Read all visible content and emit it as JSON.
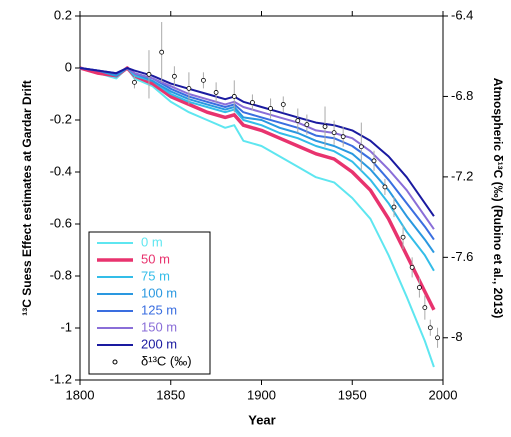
{
  "chart_data": {
    "type": "line",
    "xlabel": "Year",
    "ylabel": "¹³C Suess Effect estimates at Gardar Drift",
    "y2label": "Atmospheric δ¹³C (‰) (Rubino et al., 2013)",
    "xlim": [
      1800,
      2000
    ],
    "xticks": [
      1800,
      1850,
      1900,
      1950,
      2000
    ],
    "ylim": [
      -1.2,
      0.2
    ],
    "yticks": [
      0.2,
      0,
      -0.2,
      -0.4,
      -0.6,
      -0.8,
      -1,
      -1.2
    ],
    "y2lim": [
      -8.21,
      -6.4
    ],
    "y2ticks": [
      -6.4,
      -6.8,
      -7.2,
      -7.6,
      -8
    ],
    "legend": "lower left",
    "x": [
      1800,
      1810,
      1820,
      1826,
      1830,
      1840,
      1850,
      1860,
      1870,
      1880,
      1885,
      1890,
      1900,
      1910,
      1920,
      1930,
      1940,
      1950,
      1960,
      1970,
      1980,
      1990,
      1995
    ],
    "series": [
      {
        "name": "0 m",
        "color": "#5ee6f0",
        "linewidth": 2,
        "values": [
          0,
          -0.02,
          -0.04,
          0,
          -0.04,
          -0.07,
          -0.13,
          -0.17,
          -0.2,
          -0.23,
          -0.22,
          -0.28,
          -0.3,
          -0.34,
          -0.38,
          -0.42,
          -0.44,
          -0.5,
          -0.58,
          -0.72,
          -0.88,
          -1.05,
          -1.15
        ]
      },
      {
        "name": "50 m",
        "color": "#e8336e",
        "linewidth": 3.5,
        "values": [
          0,
          -0.02,
          -0.03,
          0,
          -0.03,
          -0.06,
          -0.11,
          -0.14,
          -0.17,
          -0.19,
          -0.18,
          -0.22,
          -0.24,
          -0.27,
          -0.3,
          -0.33,
          -0.35,
          -0.4,
          -0.47,
          -0.58,
          -0.72,
          -0.86,
          -0.93
        ]
      },
      {
        "name": "75 m",
        "color": "#33bde8",
        "linewidth": 2,
        "values": [
          0,
          -0.01,
          -0.03,
          0,
          -0.03,
          -0.05,
          -0.1,
          -0.13,
          -0.15,
          -0.17,
          -0.16,
          -0.2,
          -0.22,
          -0.25,
          -0.27,
          -0.3,
          -0.32,
          -0.36,
          -0.43,
          -0.52,
          -0.63,
          -0.72,
          -0.78
        ]
      },
      {
        "name": "100 m",
        "color": "#2a98e0",
        "linewidth": 2,
        "values": [
          0,
          -0.01,
          -0.03,
          0,
          -0.02,
          -0.05,
          -0.09,
          -0.12,
          -0.14,
          -0.16,
          -0.15,
          -0.19,
          -0.2,
          -0.23,
          -0.25,
          -0.28,
          -0.3,
          -0.33,
          -0.39,
          -0.47,
          -0.57,
          -0.66,
          -0.71
        ]
      },
      {
        "name": "125 m",
        "color": "#3a6ee0",
        "linewidth": 2,
        "values": [
          0,
          -0.01,
          -0.02,
          0,
          -0.02,
          -0.04,
          -0.08,
          -0.11,
          -0.13,
          -0.15,
          -0.14,
          -0.17,
          -0.19,
          -0.21,
          -0.23,
          -0.26,
          -0.27,
          -0.3,
          -0.35,
          -0.43,
          -0.52,
          -0.61,
          -0.66
        ]
      },
      {
        "name": "150 m",
        "color": "#8a6ed8",
        "linewidth": 2,
        "values": [
          0,
          -0.01,
          -0.02,
          0,
          -0.02,
          -0.04,
          -0.07,
          -0.1,
          -0.12,
          -0.14,
          -0.13,
          -0.15,
          -0.17,
          -0.19,
          -0.21,
          -0.24,
          -0.25,
          -0.27,
          -0.32,
          -0.39,
          -0.47,
          -0.57,
          -0.62
        ]
      },
      {
        "name": "200 m",
        "color": "#1a1aa0",
        "linewidth": 2,
        "values": [
          0,
          -0.01,
          -0.02,
          0,
          -0.01,
          -0.03,
          -0.06,
          -0.08,
          -0.1,
          -0.12,
          -0.11,
          -0.13,
          -0.15,
          -0.17,
          -0.19,
          -0.21,
          -0.22,
          -0.24,
          -0.28,
          -0.34,
          -0.42,
          -0.52,
          -0.57
        ]
      }
    ],
    "scatter": {
      "name": "δ¹³C (‰)",
      "axis": "y2",
      "color": "#000000",
      "error_color": "#aaaaaa",
      "x": [
        1830,
        1838,
        1845,
        1852,
        1860,
        1868,
        1875,
        1885,
        1895,
        1905,
        1912,
        1920,
        1925,
        1935,
        1940,
        1945,
        1955,
        1962,
        1968,
        1973,
        1978,
        1983,
        1987,
        1990,
        1993,
        1997
      ],
      "values": [
        -6.73,
        -6.69,
        -6.58,
        -6.7,
        -6.76,
        -6.72,
        -6.78,
        -6.8,
        -6.83,
        -6.86,
        -6.84,
        -6.92,
        -6.94,
        -6.95,
        -6.98,
        -7,
        -7.05,
        -7.12,
        -7.25,
        -7.35,
        -7.5,
        -7.65,
        -7.75,
        -7.85,
        -7.95,
        -8
      ],
      "errors": [
        0.03,
        0.12,
        0.15,
        0.05,
        0.08,
        0.04,
        0.05,
        0.08,
        0.04,
        0.05,
        0.04,
        0.06,
        0.05,
        0.1,
        0.06,
        0.05,
        0.12,
        0.05,
        0.04,
        0.05,
        0.06,
        0.05,
        0.05,
        0.06,
        0.04,
        0.05
      ]
    }
  }
}
